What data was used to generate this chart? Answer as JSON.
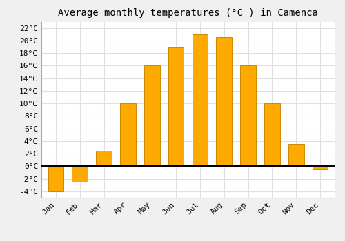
{
  "title": "Average monthly temperatures (°C ) in Camenca",
  "months": [
    "Jan",
    "Feb",
    "Mar",
    "Apr",
    "May",
    "Jun",
    "Jul",
    "Aug",
    "Sep",
    "Oct",
    "Nov",
    "Dec"
  ],
  "values": [
    -4,
    -2.5,
    2.5,
    10,
    16,
    19,
    21,
    20.5,
    16,
    10,
    3.5,
    -0.5
  ],
  "bar_color": "#FFAA00",
  "bar_edge_color": "#CC8800",
  "ylim": [
    -5,
    23
  ],
  "yticks": [
    -4,
    -2,
    0,
    2,
    4,
    6,
    8,
    10,
    12,
    14,
    16,
    18,
    20,
    22
  ],
  "ytick_labels": [
    "-4°C",
    "-2°C",
    "0°C",
    "2°C",
    "4°C",
    "6°C",
    "8°C",
    "10°C",
    "12°C",
    "14°C",
    "16°C",
    "18°C",
    "20°C",
    "22°C"
  ],
  "plot_bg_color": "#ffffff",
  "fig_bg_color": "#f0f0f0",
  "grid_color": "#e0e0e0",
  "zero_line_color": "#000000",
  "title_fontsize": 10,
  "tick_fontsize": 8,
  "font_family": "monospace",
  "bar_width": 0.65
}
